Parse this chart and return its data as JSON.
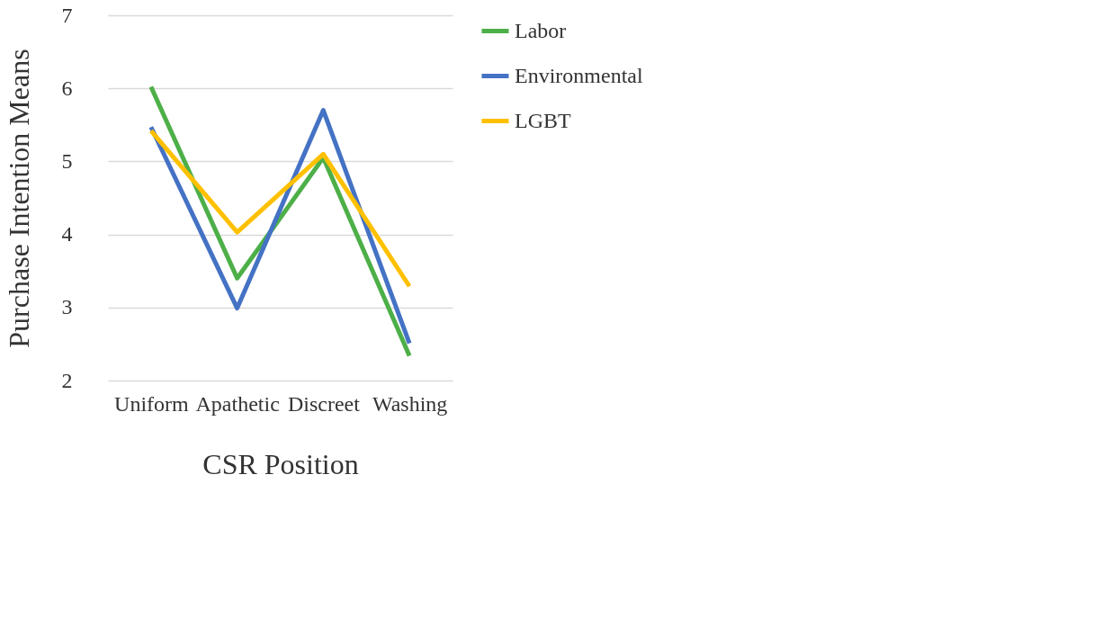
{
  "chart_data": {
    "type": "line",
    "xlabel": "CSR Position",
    "ylabel": "Purchase Intention Means",
    "categories": [
      "Uniform",
      "Apathetic",
      "Discreet",
      "Washing"
    ],
    "series": [
      {
        "name": "Labor",
        "color": "#4daf48",
        "values": [
          6.02,
          3.4,
          5.05,
          2.34
        ]
      },
      {
        "name": "Environmental",
        "color": "#4472c4",
        "values": [
          5.47,
          2.99,
          5.7,
          2.51
        ]
      },
      {
        "name": "LGBT",
        "color": "#ffc000",
        "values": [
          5.42,
          4.03,
          5.1,
          3.29
        ]
      }
    ],
    "ylim": [
      2,
      7
    ],
    "yticks": [
      2,
      3,
      4,
      5,
      6,
      7
    ],
    "grid": "y",
    "legend": "right",
    "marker": "none",
    "line_style": "solid"
  }
}
